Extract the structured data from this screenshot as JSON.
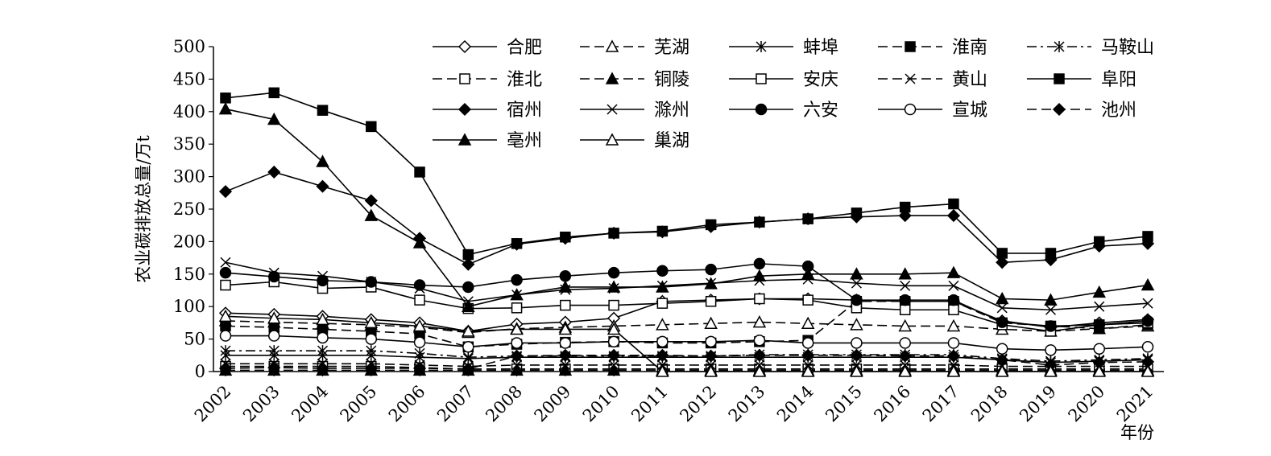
{
  "chart_data": {
    "type": "line",
    "ylabel": "农业碳排放总量/万t",
    "xlabel": "年份",
    "ylim": [
      0,
      500
    ],
    "yticks": [
      0,
      50,
      100,
      150,
      200,
      250,
      300,
      350,
      400,
      450,
      500
    ],
    "x": [
      "2002",
      "2003",
      "2004",
      "2005",
      "2006",
      "2007",
      "2008",
      "2009",
      "2010",
      "2011",
      "2012",
      "2013",
      "2014",
      "2015",
      "2016",
      "2017",
      "2018",
      "2019",
      "2020",
      "2021"
    ],
    "grid": false,
    "legend_position": "top-right",
    "series": [
      {
        "name": "合肥",
        "dash": "solid",
        "marker": "diamond",
        "fill": "open",
        "values": [
          90,
          88,
          85,
          80,
          75,
          62,
          73,
          76,
          82,
          108,
          110,
          112,
          112,
          110,
          108,
          108,
          78,
          68,
          75,
          80
        ]
      },
      {
        "name": "芜湖",
        "dash": "dashed",
        "marker": "triangle",
        "fill": "open",
        "values": [
          78,
          76,
          74,
          72,
          68,
          60,
          66,
          68,
          70,
          72,
          74,
          76,
          74,
          72,
          70,
          70,
          65,
          62,
          66,
          70
        ]
      },
      {
        "name": "蚌埠",
        "dash": "solid",
        "marker": "asterisk",
        "fill": "none",
        "values": [
          25,
          25,
          25,
          25,
          22,
          20,
          22,
          22,
          22,
          22,
          22,
          22,
          22,
          22,
          22,
          22,
          18,
          14,
          16,
          18
        ]
      },
      {
        "name": "淮南",
        "dash": "dashed",
        "marker": "square",
        "fill": "filled",
        "values": [
          70,
          68,
          65,
          62,
          58,
          38,
          42,
          45,
          46,
          44,
          44,
          46,
          48,
          108,
          108,
          108,
          75,
          70,
          66,
          72
        ]
      },
      {
        "name": "马鞍山",
        "dash": "dashdot",
        "marker": "asterisk",
        "fill": "none",
        "values": [
          32,
          32,
          32,
          32,
          28,
          22,
          24,
          24,
          24,
          24,
          24,
          26,
          26,
          26,
          26,
          26,
          20,
          16,
          18,
          20
        ]
      },
      {
        "name": "淮北",
        "dash": "dashed",
        "marker": "square",
        "fill": "open",
        "values": [
          8,
          8,
          8,
          8,
          6,
          4,
          4,
          4,
          4,
          4,
          4,
          4,
          4,
          4,
          4,
          4,
          4,
          4,
          4,
          4
        ]
      },
      {
        "name": "铜陵",
        "dash": "dashed",
        "marker": "triangle",
        "fill": "filled",
        "values": [
          2,
          2,
          2,
          2,
          2,
          2,
          2,
          2,
          2,
          2,
          2,
          2,
          2,
          2,
          2,
          2,
          2,
          2,
          2,
          2
        ]
      },
      {
        "name": "安庆",
        "dash": "solid",
        "marker": "square",
        "fill": "open",
        "values": [
          133,
          138,
          128,
          130,
          110,
          97,
          98,
          102,
          102,
          105,
          108,
          112,
          110,
          98,
          95,
          95,
          72,
          62,
          72,
          75
        ]
      },
      {
        "name": "黄山",
        "dash": "dashed",
        "marker": "x",
        "fill": "none",
        "values": [
          12,
          12,
          12,
          12,
          10,
          8,
          10,
          10,
          10,
          10,
          10,
          10,
          10,
          10,
          10,
          10,
          8,
          8,
          8,
          8
        ]
      },
      {
        "name": "阜阳",
        "dash": "solid",
        "marker": "square",
        "fill": "filled",
        "values": [
          421,
          429,
          402,
          377,
          307,
          180,
          197,
          207,
          213,
          216,
          226,
          230,
          235,
          244,
          253,
          258,
          182,
          182,
          200,
          208
        ]
      },
      {
        "name": "宿州",
        "dash": "solid",
        "marker": "diamond",
        "fill": "filled",
        "values": [
          277,
          307,
          285,
          263,
          205,
          165,
          196,
          205,
          213,
          215,
          223,
          230,
          235,
          238,
          240,
          240,
          168,
          172,
          193,
          197
        ]
      },
      {
        "name": "滁州",
        "dash": "solid",
        "marker": "x",
        "fill": "none",
        "values": [
          168,
          152,
          147,
          138,
          128,
          108,
          118,
          126,
          128,
          132,
          136,
          140,
          142,
          136,
          132,
          132,
          98,
          95,
          100,
          105
        ]
      },
      {
        "name": "六安",
        "dash": "solid",
        "marker": "circle",
        "fill": "filled",
        "values": [
          152,
          146,
          140,
          138,
          133,
          130,
          141,
          147,
          152,
          155,
          157,
          166,
          162,
          110,
          110,
          110,
          76,
          70,
          72,
          78
        ]
      },
      {
        "name": "宣城",
        "dash": "solid",
        "marker": "circle",
        "fill": "open",
        "values": [
          55,
          55,
          52,
          50,
          45,
          38,
          44,
          44,
          46,
          46,
          46,
          48,
          44,
          44,
          44,
          44,
          35,
          33,
          35,
          38
        ]
      },
      {
        "name": "池州",
        "dash": "dashed",
        "marker": "diamond",
        "fill": "filled",
        "values": [
          5,
          6,
          5,
          5,
          5,
          4,
          24,
          25,
          25,
          25,
          24,
          25,
          25,
          25,
          24,
          24,
          18,
          10,
          14,
          15
        ]
      },
      {
        "name": "亳州",
        "dash": "solid",
        "marker": "triangle",
        "fill": "filled",
        "values": [
          404,
          388,
          323,
          240,
          198,
          100,
          118,
          130,
          130,
          130,
          135,
          147,
          150,
          150,
          150,
          152,
          112,
          110,
          122,
          133
        ]
      },
      {
        "name": "巢湖",
        "dash": "solid",
        "marker": "triangle",
        "fill": "open",
        "values": [
          85,
          82,
          80,
          75,
          70,
          62,
          65,
          65,
          65,
          0,
          0,
          0,
          0,
          0,
          0,
          0,
          0,
          0,
          0,
          0
        ]
      }
    ]
  }
}
